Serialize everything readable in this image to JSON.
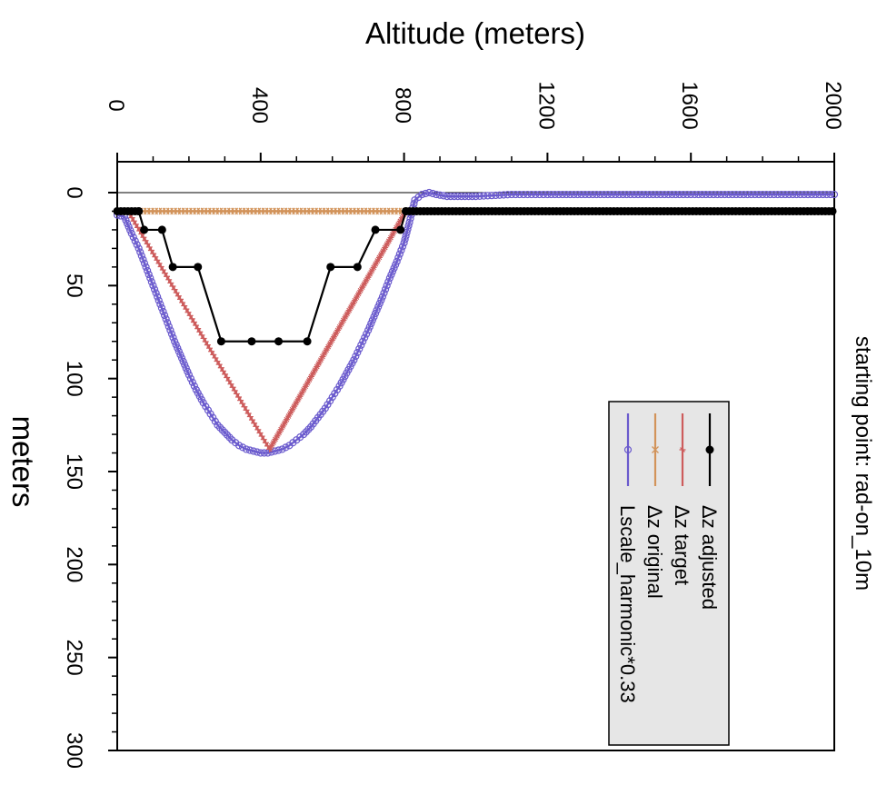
{
  "chart_data": {
    "type": "line",
    "orientation": "rotated-90-clockwise",
    "title": "",
    "corner_label": "starting point: rad-on_10m",
    "xlabel": "Altitude (meters)",
    "ylabel": "meters",
    "xlim": [
      0,
      2000
    ],
    "ylim": [
      0,
      300
    ],
    "x_ticks": [
      0,
      400,
      800,
      1200,
      1600,
      2000
    ],
    "x_tick_labels": [
      "0",
      "400",
      "800",
      "1200",
      "1600",
      "2000"
    ],
    "y_ticks": [
      0,
      50,
      100,
      150,
      200,
      250,
      300
    ],
    "y_tick_labels": [
      "0",
      "50",
      "100",
      "150",
      "200",
      "250",
      "300"
    ],
    "reference_line_y": 0,
    "legend_placement": "lower-right",
    "series": [
      {
        "name": "Δz adjusted",
        "color": "#000000",
        "marker": "filled-circle",
        "points": [
          [
            0,
            10
          ],
          [
            60,
            10
          ],
          [
            75,
            20
          ],
          [
            125,
            20
          ],
          [
            155,
            40
          ],
          [
            225,
            40
          ],
          [
            290,
            80
          ],
          [
            375,
            80
          ],
          [
            450,
            80
          ],
          [
            530,
            80
          ],
          [
            595,
            40
          ],
          [
            670,
            40
          ],
          [
            720,
            20
          ],
          [
            790,
            20
          ],
          [
            805,
            10
          ],
          [
            2000,
            10
          ]
        ]
      },
      {
        "name": "Δz target",
        "color": "#cd5c5c",
        "marker": "star",
        "points": [
          [
            30,
            10
          ],
          [
            425,
            138
          ],
          [
            805,
            10
          ]
        ]
      },
      {
        "name": "Δz original",
        "color": "#d2935a",
        "marker": "cross",
        "points": [
          [
            30,
            10
          ],
          [
            805,
            10
          ]
        ]
      },
      {
        "name": "Lscale_harmonic*0.33",
        "color": "#6a5acd",
        "marker": "open-circle",
        "points": [
          [
            0,
            12
          ],
          [
            20,
            13
          ],
          [
            40,
            22
          ],
          [
            60,
            30
          ],
          [
            80,
            40
          ],
          [
            100,
            50
          ],
          [
            120,
            60
          ],
          [
            140,
            70
          ],
          [
            160,
            80
          ],
          [
            180,
            89
          ],
          [
            200,
            98
          ],
          [
            220,
            106
          ],
          [
            240,
            113
          ],
          [
            260,
            119
          ],
          [
            280,
            125
          ],
          [
            300,
            129
          ],
          [
            320,
            133
          ],
          [
            340,
            136
          ],
          [
            360,
            138
          ],
          [
            380,
            139
          ],
          [
            400,
            140
          ],
          [
            420,
            140
          ],
          [
            440,
            139
          ],
          [
            460,
            138
          ],
          [
            480,
            136
          ],
          [
            500,
            133
          ],
          [
            520,
            130
          ],
          [
            540,
            126
          ],
          [
            560,
            121
          ],
          [
            580,
            116
          ],
          [
            600,
            110
          ],
          [
            620,
            104
          ],
          [
            640,
            97
          ],
          [
            660,
            90
          ],
          [
            680,
            82
          ],
          [
            700,
            74
          ],
          [
            720,
            65
          ],
          [
            740,
            56
          ],
          [
            760,
            46
          ],
          [
            780,
            37
          ],
          [
            800,
            27
          ],
          [
            815,
            16
          ],
          [
            830,
            4
          ],
          [
            850,
            1
          ],
          [
            870,
            0
          ],
          [
            890,
            1
          ],
          [
            920,
            2
          ],
          [
            960,
            2
          ],
          [
            1000,
            2
          ],
          [
            1100,
            1
          ],
          [
            1200,
            1
          ],
          [
            1400,
            1
          ],
          [
            1600,
            1
          ],
          [
            1800,
            1
          ],
          [
            2000,
            1
          ]
        ]
      }
    ]
  }
}
